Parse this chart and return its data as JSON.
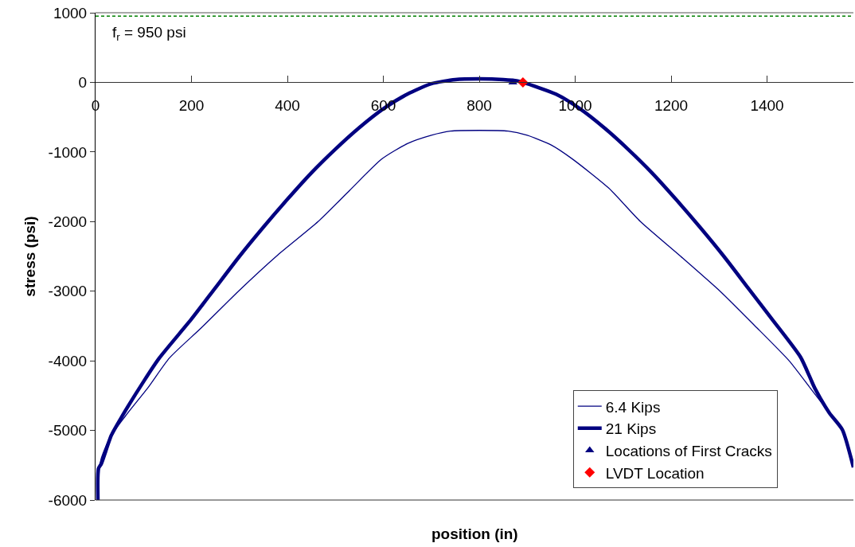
{
  "chart_data": {
    "type": "line",
    "xlabel": "position (in)",
    "ylabel": "stress (psi)",
    "xlim": [
      0,
      1580
    ],
    "xticks": [
      0,
      200,
      400,
      600,
      800,
      1000,
      1200,
      1400
    ],
    "ylim": [
      -6000,
      1000
    ],
    "yticks": [
      -6000,
      -5000,
      -4000,
      -3000,
      -2000,
      -1000,
      0,
      1000
    ],
    "grid": false,
    "legend": "bottom right",
    "marker": "none",
    "line_style": "solid",
    "series": [
      {
        "name": "6.4 Kips",
        "color": "#000080",
        "x": [
          7,
          8,
          12,
          30,
          66,
          110,
          154,
          220,
          298,
          380,
          464,
          530,
          597,
          650,
          700,
          740,
          800,
          860,
          900,
          950,
          994,
          1070,
          1136,
          1220,
          1302,
          1375,
          1446,
          1491,
          1530,
          1557,
          1580
        ],
        "values": [
          -6000,
          -5550,
          -5400,
          -5100,
          -4760,
          -4380,
          -3960,
          -3530,
          -3000,
          -2480,
          -2000,
          -1550,
          -1100,
          -880,
          -760,
          -700,
          -690,
          -700,
          -760,
          -900,
          -1100,
          -1520,
          -2000,
          -2500,
          -3000,
          -3500,
          -4000,
          -4400,
          -4750,
          -4990,
          -5530
        ]
      },
      {
        "name": "21 Kips",
        "color": "#000080",
        "x": [
          5,
          6,
          12,
          33,
          55,
          100,
          133,
          200,
          250,
          300,
          350,
          400,
          450,
          500,
          550,
          600,
          650,
          700,
          750,
          800,
          850,
          880,
          891,
          960,
          1010,
          1060,
          1110,
          1160,
          1210,
          1260,
          1310,
          1360,
          1410,
          1470,
          1500,
          1530,
          1557,
          1580
        ],
        "values": [
          -6000,
          -5550,
          -5480,
          -5070,
          -4800,
          -4300,
          -3960,
          -3400,
          -2950,
          -2500,
          -2080,
          -1680,
          -1300,
          -960,
          -650,
          -380,
          -170,
          -20,
          40,
          50,
          40,
          20,
          0,
          -170,
          -380,
          -650,
          -960,
          -1300,
          -1680,
          -2080,
          -2500,
          -2950,
          -3400,
          -3950,
          -4400,
          -4750,
          -4990,
          -5530
        ]
      },
      {
        "name": "Locations of First Cracks",
        "color": "#000080",
        "type": "scatter",
        "marker": "triangle",
        "x": [
          870
        ],
        "values": [
          0
        ]
      },
      {
        "name": "LVDT Location",
        "color": "#ff0000",
        "type": "scatter",
        "marker": "diamond",
        "x": [
          891
        ],
        "values": [
          0
        ]
      }
    ],
    "ref_lines": [
      {
        "axis": "y",
        "value": 950,
        "label": "f$_{r}$ = 950 psi",
        "color": "#008000",
        "line_style": "dashed"
      }
    ]
  }
}
